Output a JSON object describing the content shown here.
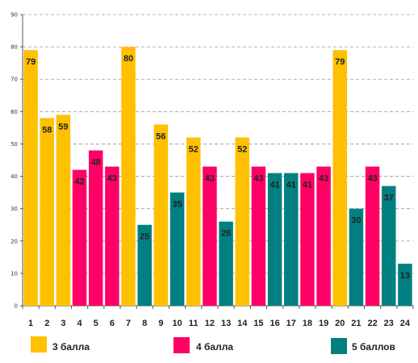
{
  "chart_data": {
    "type": "bar",
    "title": "",
    "xlabel": "",
    "ylabel": "",
    "ylim": [
      0,
      90
    ],
    "ytick_step": 10,
    "grid": true,
    "legend_position": "bottom",
    "categories": [
      "1",
      "2",
      "3",
      "4",
      "5",
      "6",
      "7",
      "8",
      "9",
      "10",
      "11",
      "12",
      "13",
      "14",
      "15",
      "16",
      "17",
      "18",
      "19",
      "20",
      "21",
      "22",
      "23",
      "24"
    ],
    "values": [
      79,
      58,
      59,
      42,
      48,
      43,
      80,
      25,
      56,
      35,
      52,
      43,
      26,
      52,
      43,
      41,
      41,
      41,
      43,
      79,
      30,
      43,
      37,
      13
    ],
    "groups": [
      0,
      0,
      0,
      1,
      1,
      1,
      0,
      2,
      0,
      2,
      0,
      1,
      2,
      0,
      1,
      2,
      2,
      1,
      1,
      0,
      2,
      1,
      2,
      2
    ],
    "legend": [
      {
        "name": "3 балла",
        "color": "#FFC000"
      },
      {
        "name": "4 балла",
        "color": "#FF0066"
      },
      {
        "name": "5 баллов",
        "color": "#008080"
      }
    ]
  }
}
